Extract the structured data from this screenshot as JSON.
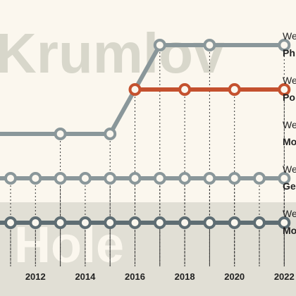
{
  "chart_data": {
    "type": "line",
    "watermarks": [
      "Krumlov",
      "Hole"
    ],
    "x_ticks": [
      "2012",
      "2014",
      "2016",
      "2018",
      "2020",
      "2022"
    ],
    "xlim": [
      2010,
      2022
    ],
    "series": [
      {
        "label_line1": "We",
        "label_line2": "Ph",
        "color": "#8a979a",
        "points": [
          [
            2013,
            1
          ],
          [
            2015,
            1
          ],
          [
            2017,
            3
          ],
          [
            2019,
            3
          ],
          [
            2022,
            3
          ]
        ]
      },
      {
        "label_line1": "We",
        "label_line2": "Po",
        "color": "#c4512e",
        "points": [
          [
            2016,
            2
          ],
          [
            2018,
            2
          ],
          [
            2020,
            2
          ],
          [
            2022,
            2
          ]
        ]
      },
      {
        "label_line1": "We",
        "label_line2": "Mo",
        "color": "#8a979a",
        "points": []
      },
      {
        "label_line1": "We",
        "label_line2": "Ge",
        "color": "#8a979a",
        "points": [
          [
            2011,
            0
          ],
          [
            2012,
            0
          ],
          [
            2013,
            0
          ],
          [
            2014,
            0
          ],
          [
            2015,
            0
          ],
          [
            2016,
            0
          ],
          [
            2017,
            0
          ],
          [
            2018,
            0
          ],
          [
            2019,
            0
          ],
          [
            2020,
            0
          ],
          [
            2021,
            0
          ],
          [
            2022,
            0
          ]
        ]
      },
      {
        "label_line1": "We",
        "label_line2": "Mo",
        "color": "#5e6d73",
        "points": [
          [
            2011,
            -1
          ],
          [
            2012,
            -1
          ],
          [
            2013,
            -1
          ],
          [
            2014,
            -1
          ],
          [
            2015,
            -1
          ],
          [
            2016,
            -1
          ],
          [
            2017,
            -1
          ],
          [
            2018,
            -1
          ],
          [
            2019,
            -1
          ],
          [
            2020,
            -1
          ],
          [
            2021,
            -1
          ],
          [
            2022,
            -1
          ]
        ]
      }
    ]
  }
}
